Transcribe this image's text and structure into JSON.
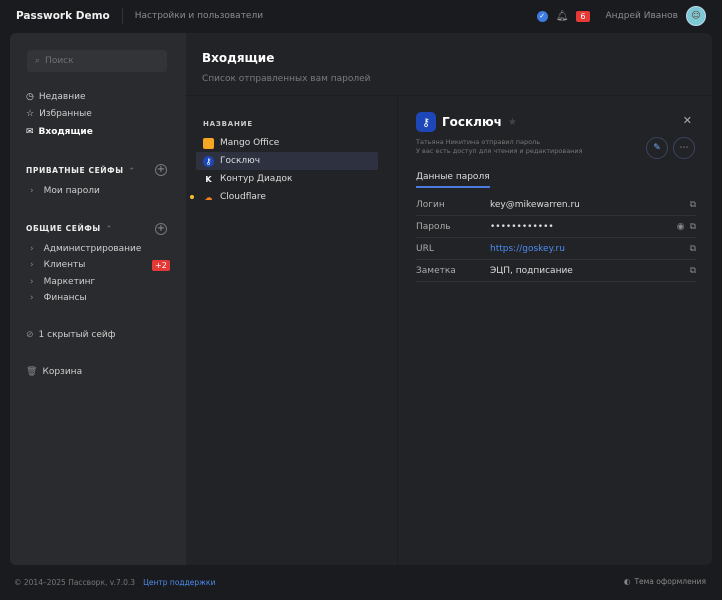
{
  "header": {
    "app_title": "Passwork Demo",
    "breadcrumb": "Настройки и пользователи",
    "notifications_count": "6",
    "user_name": "Андрей Иванов"
  },
  "sidebar": {
    "search_placeholder": "Поиск",
    "nav": [
      {
        "label": "Недавние",
        "icon": "clock-icon"
      },
      {
        "label": "Избранные",
        "icon": "star-icon"
      },
      {
        "label": "Входящие",
        "icon": "inbox-icon",
        "active": true
      }
    ],
    "private_title": "ПРИВАТНЫЕ СЕЙФЫ",
    "private_vaults": [
      "Мои пароли"
    ],
    "shared_title": "ОБЩИЕ СЕЙФЫ",
    "shared_vaults": [
      "Администрирование",
      "Клиенты",
      "Маркетинг",
      "Финансы"
    ],
    "clients_badge": "+2",
    "hidden": "1 скрытый сейф",
    "trash": "Корзина"
  },
  "page": {
    "title": "Входящие",
    "subtitle": "Список отправленных вам паролей"
  },
  "list": {
    "column": "НАЗВАНИЕ",
    "items": [
      "Mango Office",
      "Госключ",
      "Контур Диадок",
      "Cloudflare"
    ],
    "selected": "Госключ"
  },
  "detail": {
    "title": "Госключ",
    "sender": "Татьяна Никитина отправил пароль",
    "access": "У вас есть доступ для чтения и редактирования",
    "tab": "Данные пароля",
    "fields": [
      {
        "label": "Логин",
        "value": "key@mikewarren.ru"
      },
      {
        "label": "Пароль",
        "value": "••••••••••••"
      },
      {
        "label": "URL",
        "value": "https://goskey.ru"
      },
      {
        "label": "Заметка",
        "value": "ЭЦП, подписание"
      }
    ]
  },
  "footer": {
    "copyright": "© 2014–2025 Пассворк, v.7.0.3",
    "support": "Центр поддержки",
    "theme": "Тема оформления"
  },
  "colors": {
    "accent": "#4c7be0",
    "badge": "#e53935",
    "unread_dot": "#f2c12e"
  }
}
